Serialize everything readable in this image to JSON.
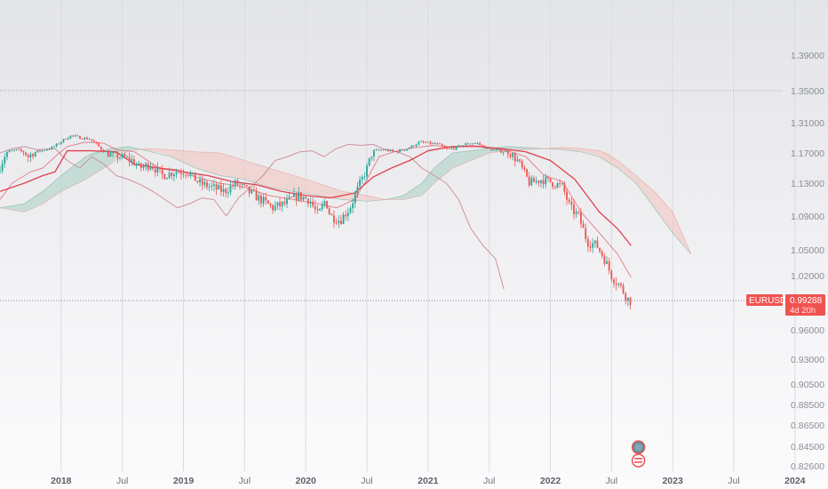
{
  "chart_data": {
    "type": "candlestick",
    "symbol": "EURUSD",
    "last_price_label": "0.99288",
    "countdown_label": "4d 20h",
    "x_ticks": [
      {
        "label": "2018",
        "t": 2018.0,
        "major": true
      },
      {
        "label": "Jul",
        "t": 2018.5,
        "major": false
      },
      {
        "label": "2019",
        "t": 2019.0,
        "major": true
      },
      {
        "label": "Jul",
        "t": 2019.5,
        "major": false
      },
      {
        "label": "2020",
        "t": 2020.0,
        "major": true
      },
      {
        "label": "Jul",
        "t": 2020.5,
        "major": false
      },
      {
        "label": "2021",
        "t": 2021.0,
        "major": true
      },
      {
        "label": "Jul",
        "t": 2021.5,
        "major": false
      },
      {
        "label": "2022",
        "t": 2022.0,
        "major": true
      },
      {
        "label": "Jul",
        "t": 2022.5,
        "major": false
      },
      {
        "label": "2023",
        "t": 2023.0,
        "major": true
      },
      {
        "label": "Jul",
        "t": 2023.5,
        "major": false
      },
      {
        "label": "2024",
        "t": 2024.0,
        "major": true
      }
    ],
    "y_ticks": [
      {
        "label": "1.39000",
        "v": 1.39
      },
      {
        "label": "1.35000",
        "v": 1.35
      },
      {
        "label": "1.31000",
        "v": 1.31
      },
      {
        "label": "1.17000",
        "v": 1.17
      },
      {
        "label": "1.13000",
        "v": 1.13
      },
      {
        "label": "1.09000",
        "v": 1.09
      },
      {
        "label": "1.05000",
        "v": 1.05
      },
      {
        "label": "1.02000",
        "v": 1.02
      },
      {
        "label": "0.99288",
        "v": 0.99288
      },
      {
        "label": "0.96000",
        "v": 0.96
      },
      {
        "label": "0.93000",
        "v": 0.93
      },
      {
        "label": "0.90500",
        "v": 0.905
      },
      {
        "label": "0.88500",
        "v": 0.885
      },
      {
        "label": "0.86500",
        "v": 0.865
      },
      {
        "label": "0.84500",
        "v": 0.845
      },
      {
        "label": "0.82600",
        "v": 0.826
      }
    ],
    "reference_line": 1.35,
    "price_path": [
      [
        2017.5,
        1.145
      ],
      [
        2017.58,
        1.175
      ],
      [
        2017.66,
        1.185
      ],
      [
        2017.75,
        1.165
      ],
      [
        2017.85,
        1.18
      ],
      [
        2017.95,
        1.195
      ],
      [
        2018.05,
        1.235
      ],
      [
        2018.1,
        1.25
      ],
      [
        2018.18,
        1.24
      ],
      [
        2018.25,
        1.235
      ],
      [
        2018.3,
        1.215
      ],
      [
        2018.35,
        1.185
      ],
      [
        2018.4,
        1.17
      ],
      [
        2018.5,
        1.165
      ],
      [
        2018.6,
        1.16
      ],
      [
        2018.66,
        1.15
      ],
      [
        2018.75,
        1.155
      ],
      [
        2018.85,
        1.14
      ],
      [
        2018.95,
        1.145
      ],
      [
        2019.05,
        1.145
      ],
      [
        2019.15,
        1.13
      ],
      [
        2019.25,
        1.125
      ],
      [
        2019.35,
        1.12
      ],
      [
        2019.45,
        1.13
      ],
      [
        2019.55,
        1.12
      ],
      [
        2019.65,
        1.11
      ],
      [
        2019.75,
        1.1
      ],
      [
        2019.85,
        1.105
      ],
      [
        2019.95,
        1.115
      ],
      [
        2020.05,
        1.11
      ],
      [
        2020.12,
        1.09
      ],
      [
        2020.18,
        1.11
      ],
      [
        2020.22,
        1.09
      ],
      [
        2020.3,
        1.085
      ],
      [
        2020.38,
        1.1
      ],
      [
        2020.45,
        1.125
      ],
      [
        2020.52,
        1.15
      ],
      [
        2020.58,
        1.18
      ],
      [
        2020.66,
        1.185
      ],
      [
        2020.75,
        1.175
      ],
      [
        2020.85,
        1.19
      ],
      [
        2020.95,
        1.22
      ],
      [
        2021.02,
        1.215
      ],
      [
        2021.1,
        1.21
      ],
      [
        2021.18,
        1.185
      ],
      [
        2021.25,
        1.195
      ],
      [
        2021.35,
        1.215
      ],
      [
        2021.42,
        1.215
      ],
      [
        2021.5,
        1.19
      ],
      [
        2021.58,
        1.18
      ],
      [
        2021.66,
        1.175
      ],
      [
        2021.75,
        1.16
      ],
      [
        2021.85,
        1.13
      ],
      [
        2021.95,
        1.135
      ],
      [
        2022.05,
        1.13
      ],
      [
        2022.12,
        1.125
      ],
      [
        2022.18,
        1.1
      ],
      [
        2022.25,
        1.09
      ],
      [
        2022.32,
        1.06
      ],
      [
        2022.4,
        1.055
      ],
      [
        2022.46,
        1.04
      ],
      [
        2022.52,
        1.02
      ],
      [
        2022.58,
        1.01
      ],
      [
        2022.62,
        1.002
      ],
      [
        2022.66,
        0.99288
      ]
    ],
    "tenkan_sen": [
      [
        2017.5,
        1.11
      ],
      [
        2017.6,
        1.13
      ],
      [
        2017.75,
        1.145
      ],
      [
        2017.85,
        1.15
      ],
      [
        2017.95,
        1.165
      ],
      [
        2018.05,
        1.2
      ],
      [
        2018.2,
        1.22
      ],
      [
        2018.35,
        1.215
      ],
      [
        2018.45,
        1.185
      ],
      [
        2018.6,
        1.175
      ],
      [
        2018.8,
        1.15
      ],
      [
        2018.95,
        1.148
      ],
      [
        2019.1,
        1.138
      ],
      [
        2019.3,
        1.13
      ],
      [
        2019.5,
        1.125
      ],
      [
        2019.7,
        1.115
      ],
      [
        2019.9,
        1.11
      ],
      [
        2020.1,
        1.105
      ],
      [
        2020.25,
        1.1
      ],
      [
        2020.4,
        1.11
      ],
      [
        2020.5,
        1.135
      ],
      [
        2020.6,
        1.165
      ],
      [
        2020.75,
        1.18
      ],
      [
        2020.9,
        1.195
      ],
      [
        2021.05,
        1.205
      ],
      [
        2021.2,
        1.195
      ],
      [
        2021.35,
        1.205
      ],
      [
        2021.5,
        1.195
      ],
      [
        2021.65,
        1.18
      ],
      [
        2021.8,
        1.165
      ],
      [
        2021.95,
        1.14
      ],
      [
        2022.1,
        1.132
      ],
      [
        2022.25,
        1.095
      ],
      [
        2022.4,
        1.07
      ],
      [
        2022.55,
        1.045
      ],
      [
        2022.66,
        1.018
      ]
    ],
    "kijun_sen": [
      [
        2017.5,
        1.12
      ],
      [
        2017.7,
        1.13
      ],
      [
        2017.85,
        1.14
      ],
      [
        2017.95,
        1.145
      ],
      [
        2018.05,
        1.18
      ],
      [
        2018.25,
        1.18
      ],
      [
        2018.45,
        1.175
      ],
      [
        2018.6,
        1.155
      ],
      [
        2018.8,
        1.15
      ],
      [
        2019.0,
        1.145
      ],
      [
        2019.2,
        1.14
      ],
      [
        2019.4,
        1.132
      ],
      [
        2019.6,
        1.128
      ],
      [
        2019.8,
        1.12
      ],
      [
        2020.0,
        1.115
      ],
      [
        2020.2,
        1.112
      ],
      [
        2020.4,
        1.118
      ],
      [
        2020.55,
        1.138
      ],
      [
        2020.7,
        1.15
      ],
      [
        2020.85,
        1.16
      ],
      [
        2021.0,
        1.18
      ],
      [
        2021.2,
        1.2
      ],
      [
        2021.4,
        1.2
      ],
      [
        2021.6,
        1.19
      ],
      [
        2021.8,
        1.175
      ],
      [
        2022.0,
        1.16
      ],
      [
        2022.2,
        1.135
      ],
      [
        2022.4,
        1.095
      ],
      [
        2022.55,
        1.075
      ],
      [
        2022.66,
        1.055
      ]
    ],
    "chikou_span": [
      [
        2017.5,
        1.17
      ],
      [
        2017.6,
        1.19
      ],
      [
        2017.7,
        1.2
      ],
      [
        2017.8,
        1.185
      ],
      [
        2017.95,
        1.19
      ],
      [
        2018.05,
        1.16
      ],
      [
        2018.15,
        1.15
      ],
      [
        2018.25,
        1.165
      ],
      [
        2018.35,
        1.155
      ],
      [
        2018.45,
        1.14
      ],
      [
        2018.55,
        1.135
      ],
      [
        2018.65,
        1.128
      ],
      [
        2018.75,
        1.12
      ],
      [
        2018.85,
        1.11
      ],
      [
        2018.95,
        1.1
      ],
      [
        2019.05,
        1.105
      ],
      [
        2019.15,
        1.112
      ],
      [
        2019.25,
        1.11
      ],
      [
        2019.35,
        1.09
      ],
      [
        2019.45,
        1.112
      ],
      [
        2019.55,
        1.125
      ],
      [
        2019.65,
        1.14
      ],
      [
        2019.75,
        1.16
      ],
      [
        2019.85,
        1.165
      ],
      [
        2019.95,
        1.175
      ],
      [
        2020.05,
        1.18
      ],
      [
        2020.15,
        1.165
      ],
      [
        2020.25,
        1.19
      ],
      [
        2020.35,
        1.21
      ],
      [
        2020.45,
        1.205
      ],
      [
        2020.55,
        1.21
      ],
      [
        2020.65,
        1.185
      ],
      [
        2020.75,
        1.175
      ],
      [
        2020.85,
        1.165
      ],
      [
        2020.95,
        1.15
      ],
      [
        2021.05,
        1.14
      ],
      [
        2021.15,
        1.13
      ],
      [
        2021.25,
        1.11
      ],
      [
        2021.35,
        1.075
      ],
      [
        2021.45,
        1.055
      ],
      [
        2021.55,
        1.04
      ],
      [
        2021.62,
        1.005
      ]
    ],
    "senkou_a": [
      [
        2017.5,
        1.1
      ],
      [
        2017.7,
        1.105
      ],
      [
        2017.85,
        1.12
      ],
      [
        2018.0,
        1.14
      ],
      [
        2018.2,
        1.165
      ],
      [
        2018.4,
        1.19
      ],
      [
        2018.55,
        1.2
      ],
      [
        2018.7,
        1.18
      ],
      [
        2018.9,
        1.165
      ],
      [
        2019.1,
        1.15
      ],
      [
        2019.3,
        1.14
      ],
      [
        2019.5,
        1.135
      ],
      [
        2019.7,
        1.125
      ],
      [
        2019.9,
        1.12
      ],
      [
        2020.1,
        1.115
      ],
      [
        2020.3,
        1.11
      ],
      [
        2020.5,
        1.108
      ],
      [
        2020.65,
        1.11
      ],
      [
        2020.8,
        1.115
      ],
      [
        2020.95,
        1.13
      ],
      [
        2021.05,
        1.15
      ],
      [
        2021.2,
        1.17
      ],
      [
        2021.35,
        1.18
      ],
      [
        2021.5,
        1.19
      ],
      [
        2021.65,
        1.2
      ],
      [
        2021.8,
        1.195
      ],
      [
        2021.95,
        1.19
      ],
      [
        2022.1,
        1.185
      ],
      [
        2022.25,
        1.175
      ],
      [
        2022.4,
        1.165
      ],
      [
        2022.55,
        1.15
      ],
      [
        2022.7,
        1.13
      ],
      [
        2022.85,
        1.1
      ],
      [
        2023.0,
        1.07
      ],
      [
        2023.15,
        1.045
      ]
    ],
    "senkou_b": [
      [
        2017.5,
        1.1
      ],
      [
        2017.7,
        1.095
      ],
      [
        2017.85,
        1.105
      ],
      [
        2018.0,
        1.12
      ],
      [
        2018.2,
        1.135
      ],
      [
        2018.4,
        1.155
      ],
      [
        2018.55,
        1.18
      ],
      [
        2018.7,
        1.19
      ],
      [
        2018.9,
        1.185
      ],
      [
        2019.1,
        1.175
      ],
      [
        2019.3,
        1.17
      ],
      [
        2019.5,
        1.16
      ],
      [
        2019.7,
        1.15
      ],
      [
        2019.9,
        1.14
      ],
      [
        2020.1,
        1.13
      ],
      [
        2020.3,
        1.12
      ],
      [
        2020.5,
        1.115
      ],
      [
        2020.65,
        1.11
      ],
      [
        2020.8,
        1.11
      ],
      [
        2020.95,
        1.115
      ],
      [
        2021.05,
        1.13
      ],
      [
        2021.2,
        1.15
      ],
      [
        2021.35,
        1.16
      ],
      [
        2021.5,
        1.17
      ],
      [
        2021.65,
        1.18
      ],
      [
        2021.8,
        1.185
      ],
      [
        2021.95,
        1.19
      ],
      [
        2022.1,
        1.195
      ],
      [
        2022.25,
        1.19
      ],
      [
        2022.4,
        1.18
      ],
      [
        2022.55,
        1.16
      ],
      [
        2022.7,
        1.14
      ],
      [
        2022.85,
        1.12
      ],
      [
        2023.0,
        1.095
      ],
      [
        2023.15,
        1.045
      ]
    ],
    "colors": {
      "up": "#26a69a",
      "down": "#ef5350",
      "tenkan": "#e0404e",
      "kijun": "#e0404e",
      "chikou": "#c98290",
      "cloud_bull": "#a9cfc2",
      "cloud_bear": "#f2c2bb",
      "last_price_tag": "#ef5350"
    },
    "event_markers": [
      {
        "icon": "euro-flag-icon",
        "t": 2022.72
      },
      {
        "icon": "us-flag-icon",
        "t": 2022.72
      }
    ]
  }
}
